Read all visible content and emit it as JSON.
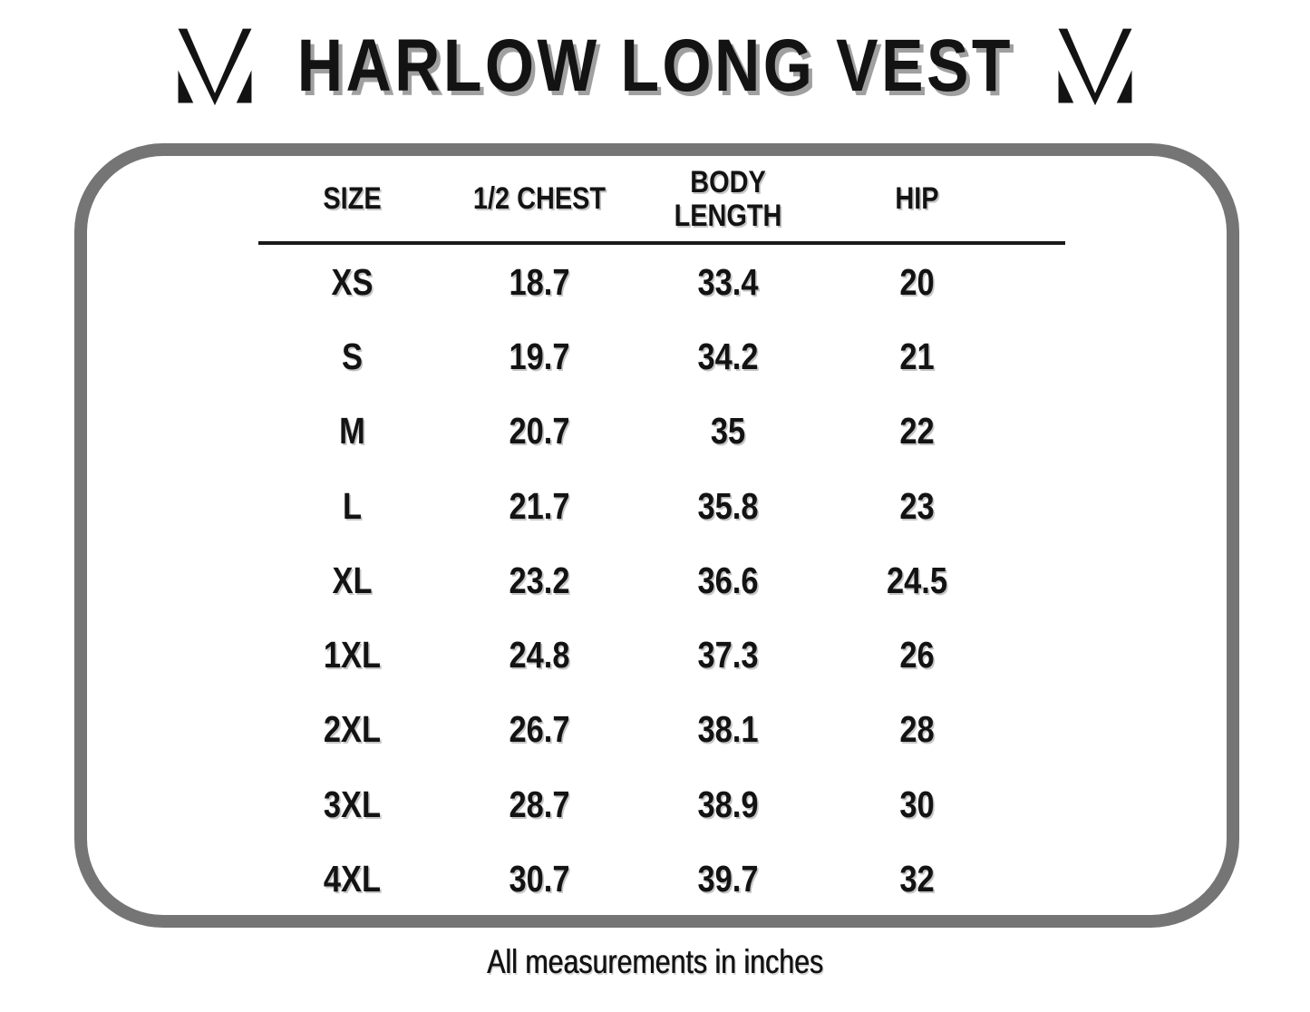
{
  "brand": {
    "logo_icon": "m-monogram-logo"
  },
  "chart_data": {
    "type": "table",
    "title": "HARLOW LONG VEST",
    "columns": [
      "SIZE",
      "1/2 CHEST",
      "BODY\nLENGTH",
      "HIP"
    ],
    "rows": [
      [
        "XS",
        18.7,
        33.4,
        20
      ],
      [
        "S",
        19.7,
        34.2,
        21
      ],
      [
        "M",
        20.7,
        35,
        22
      ],
      [
        "L",
        21.7,
        35.8,
        23
      ],
      [
        "XL",
        23.2,
        36.6,
        24.5
      ],
      [
        "1XL",
        24.8,
        37.3,
        26
      ],
      [
        "2XL",
        26.7,
        38.1,
        28
      ],
      [
        "3XL",
        28.7,
        38.9,
        30
      ],
      [
        "4XL",
        30.7,
        39.7,
        32
      ]
    ],
    "note": "All measurements in inches"
  },
  "theme": {
    "background": "#ffffff",
    "text": "#131313",
    "panel_border": "#757575",
    "title_shadow": "#a0a0a0",
    "cell_shadow": "#c6c6c6",
    "divider": "#1a1a1a"
  }
}
